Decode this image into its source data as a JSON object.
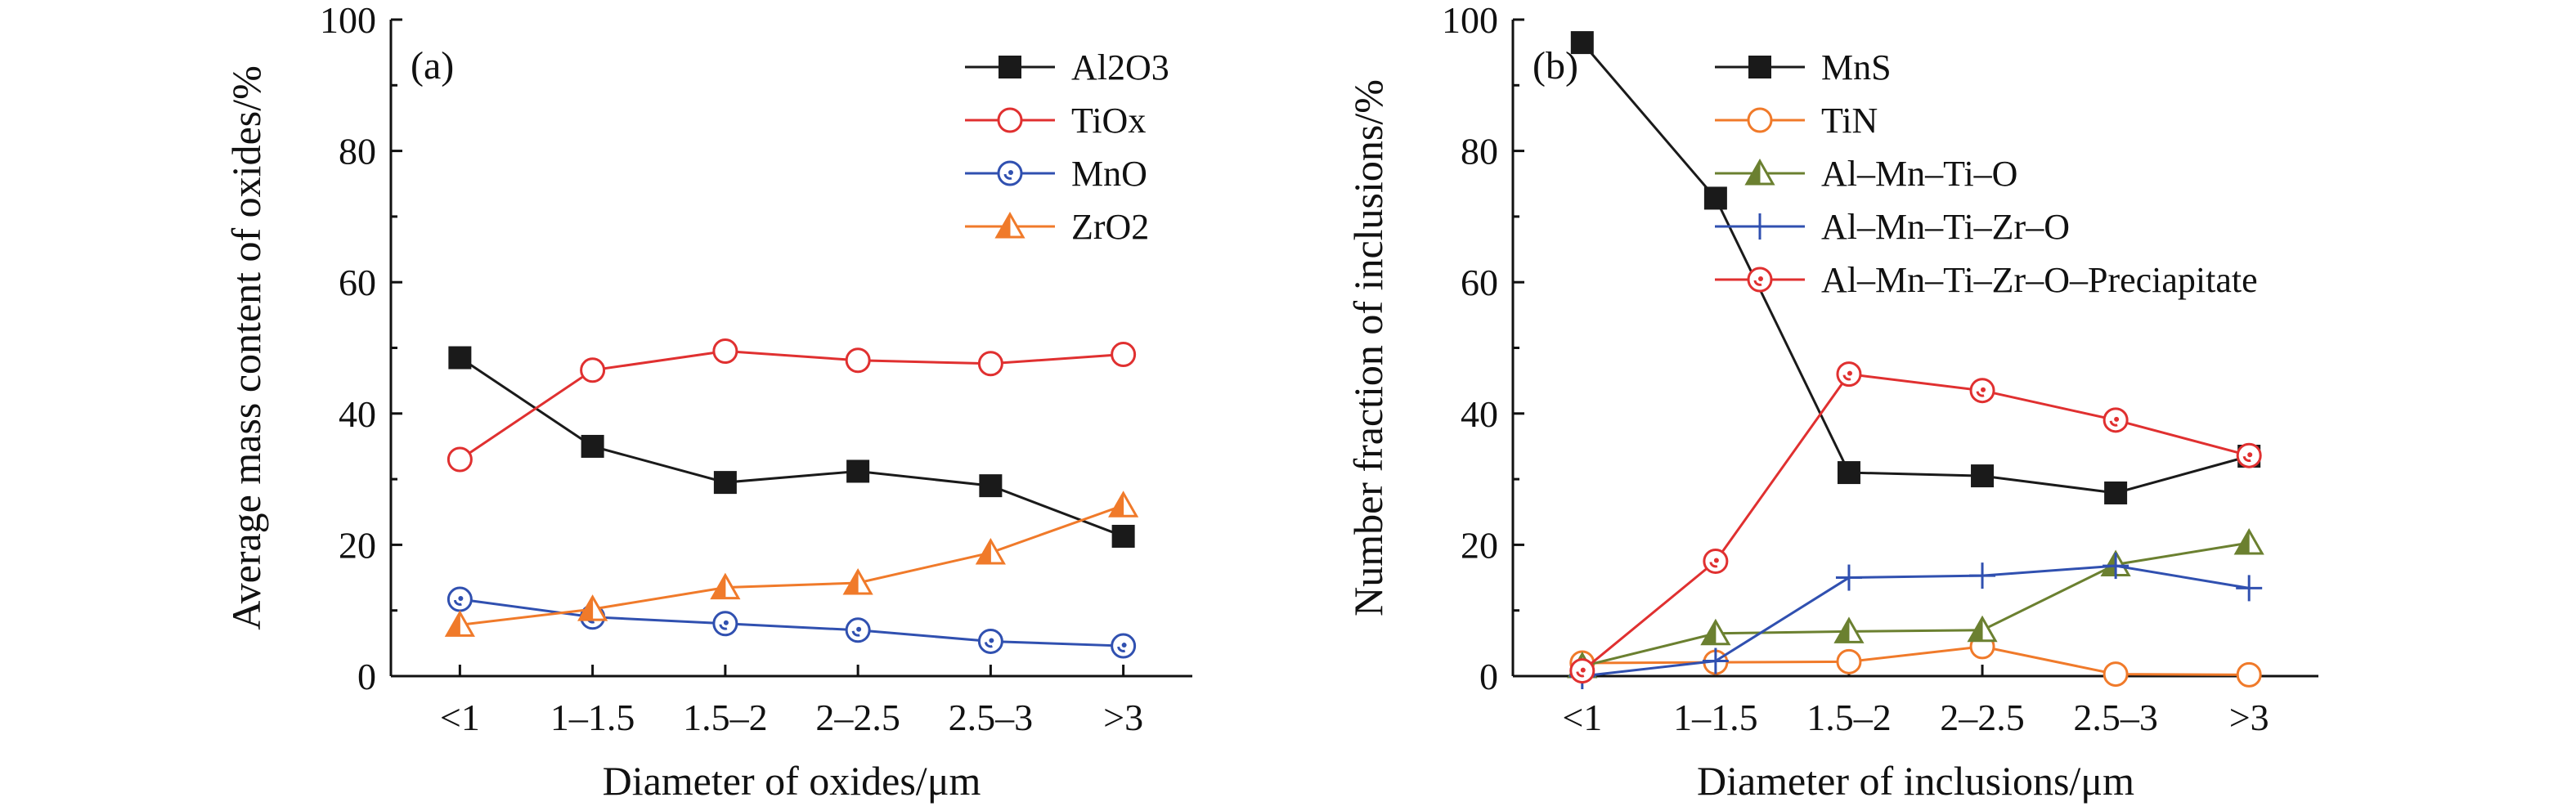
{
  "chart_data": [
    {
      "type": "line",
      "panel_label": "(a)",
      "xlabel": "Diameter of oxides/μm",
      "ylabel": "Average mass content of oxides/%",
      "categories": [
        "<1",
        "1–1.5",
        "1.5–2",
        "2–2.5",
        "2.5–3",
        ">3"
      ],
      "ylim": [
        0,
        100
      ],
      "yticks": [
        0,
        20,
        40,
        60,
        80,
        100
      ],
      "legend_position": "top-right",
      "grid": false,
      "series": [
        {
          "name": "Al2O3",
          "color": "#1a1a1a",
          "marker": "square-filled",
          "values": [
            48.5,
            35.0,
            29.5,
            31.2,
            29.0,
            21.3
          ]
        },
        {
          "name": "TiOx",
          "color": "#e03030",
          "marker": "circle-open",
          "values": [
            33.0,
            46.6,
            49.5,
            48.1,
            47.6,
            49.0
          ]
        },
        {
          "name": "MnO",
          "color": "#3050b0",
          "marker": "circle-dot",
          "values": [
            11.7,
            9.0,
            8.0,
            7.0,
            5.3,
            4.6
          ]
        },
        {
          "name": "ZrO2",
          "color": "#f07a2a",
          "marker": "triangle-half",
          "values": [
            7.8,
            10.2,
            13.5,
            14.2,
            18.8,
            26.0
          ]
        }
      ]
    },
    {
      "type": "line",
      "panel_label": "(b)",
      "xlabel": "Diameter of inclusions/μm",
      "ylabel": "Number fraction of inclusions/%",
      "categories": [
        "<1",
        "1–1.5",
        "1.5–2",
        "2–2.5",
        "2.5–3",
        ">3"
      ],
      "ylim": [
        0,
        100
      ],
      "yticks": [
        0,
        20,
        40,
        60,
        80,
        100
      ],
      "legend_position": "top-center",
      "grid": false,
      "series": [
        {
          "name": "MnS",
          "color": "#1a1a1a",
          "marker": "square-filled",
          "values": [
            96.5,
            72.8,
            31.0,
            30.5,
            27.9,
            33.5
          ]
        },
        {
          "name": "TiN",
          "color": "#f07a2a",
          "marker": "circle-open",
          "values": [
            2.0,
            2.1,
            2.2,
            4.5,
            0.3,
            0.2
          ]
        },
        {
          "name": "Al–Mn–Ti–O",
          "color": "#6b8030",
          "marker": "triangle-half",
          "values": [
            1.5,
            6.5,
            6.8,
            7.0,
            17.0,
            20.3
          ]
        },
        {
          "name": "Al–Mn–Ti–Zr–O",
          "color": "#3050b0",
          "marker": "plus",
          "values": [
            0.0,
            2.3,
            15.0,
            15.3,
            16.8,
            13.4
          ]
        },
        {
          "name": "Al–Mn–Ti–Zr–O–Preciapitate",
          "color": "#e03030",
          "marker": "circle-dot",
          "values": [
            0.8,
            17.5,
            46.0,
            43.5,
            39.0,
            33.6
          ]
        }
      ]
    }
  ]
}
